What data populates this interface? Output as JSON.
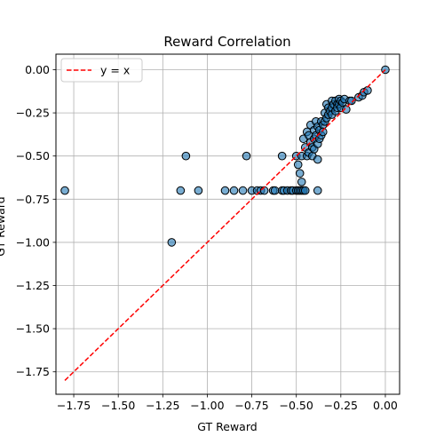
{
  "chart_data": {
    "type": "scatter",
    "title": "Reward Correlation",
    "xlabel": "GT Reward",
    "ylabel": "GT Reward",
    "xlim": [
      -1.85,
      0.08
    ],
    "ylim": [
      -1.88,
      0.09
    ],
    "xticks": [
      -1.75,
      -1.5,
      -1.25,
      -1.0,
      -0.75,
      -0.5,
      -0.25,
      0.0
    ],
    "xtick_labels": [
      "−1.75",
      "−1.50",
      "−1.25",
      "−1.00",
      "−0.75",
      "−0.50",
      "−0.25",
      "0.00"
    ],
    "yticks": [
      0.0,
      -0.25,
      -0.5,
      -0.75,
      -1.0,
      -1.25,
      -1.5,
      -1.75
    ],
    "ytick_labels": [
      "0.00",
      "−0.25",
      "−0.50",
      "−0.75",
      "−1.00",
      "−1.25",
      "−1.50",
      "−1.75"
    ],
    "grid": true,
    "legend_position": "top-left",
    "reference_line": {
      "label": "y = x",
      "x": [
        -1.8,
        0.0
      ],
      "y": [
        -1.8,
        0.0
      ],
      "color": "#ff0000",
      "style": "dashed"
    },
    "series": [
      {
        "marker_fill": "#1f77b4",
        "marker_edge": "#000000",
        "points": [
          [
            -1.8,
            -0.7
          ],
          [
            -1.2,
            -1.0
          ],
          [
            -1.15,
            -0.7
          ],
          [
            -1.12,
            -0.5
          ],
          [
            -1.05,
            -0.7
          ],
          [
            -0.9,
            -0.7
          ],
          [
            -0.85,
            -0.7
          ],
          [
            -0.8,
            -0.7
          ],
          [
            -0.78,
            -0.5
          ],
          [
            -0.75,
            -0.7
          ],
          [
            -0.72,
            -0.7
          ],
          [
            -0.7,
            -0.7
          ],
          [
            -0.68,
            -0.7
          ],
          [
            -0.63,
            -0.7
          ],
          [
            -0.62,
            -0.7
          ],
          [
            -0.58,
            -0.7
          ],
          [
            -0.57,
            -0.7
          ],
          [
            -0.58,
            -0.5
          ],
          [
            -0.55,
            -0.7
          ],
          [
            -0.53,
            -0.7
          ],
          [
            -0.52,
            -0.7
          ],
          [
            -0.5,
            -0.7
          ],
          [
            -0.49,
            -0.7
          ],
          [
            -0.48,
            -0.7
          ],
          [
            -0.47,
            -0.7
          ],
          [
            -0.46,
            -0.7
          ],
          [
            -0.45,
            -0.7
          ],
          [
            -0.38,
            -0.7
          ],
          [
            -0.5,
            -0.5
          ],
          [
            -0.49,
            -0.55
          ],
          [
            -0.48,
            -0.6
          ],
          [
            -0.47,
            -0.65
          ],
          [
            -0.47,
            -0.5
          ],
          [
            -0.46,
            -0.4
          ],
          [
            -0.45,
            -0.45
          ],
          [
            -0.44,
            -0.36
          ],
          [
            -0.44,
            -0.5
          ],
          [
            -0.43,
            -0.48
          ],
          [
            -0.43,
            -0.38
          ],
          [
            -0.42,
            -0.42
          ],
          [
            -0.42,
            -0.32
          ],
          [
            -0.41,
            -0.45
          ],
          [
            -0.41,
            -0.5
          ],
          [
            -0.4,
            -0.35
          ],
          [
            -0.4,
            -0.4
          ],
          [
            -0.4,
            -0.46
          ],
          [
            -0.39,
            -0.3
          ],
          [
            -0.39,
            -0.38
          ],
          [
            -0.38,
            -0.33
          ],
          [
            -0.38,
            -0.43
          ],
          [
            -0.38,
            -0.52
          ],
          [
            -0.37,
            -0.35
          ],
          [
            -0.37,
            -0.4
          ],
          [
            -0.36,
            -0.3
          ],
          [
            -0.36,
            -0.38
          ],
          [
            -0.35,
            -0.32
          ],
          [
            -0.35,
            -0.36
          ],
          [
            -0.34,
            -0.25
          ],
          [
            -0.34,
            -0.3
          ],
          [
            -0.33,
            -0.2
          ],
          [
            -0.33,
            -0.28
          ],
          [
            -0.32,
            -0.22
          ],
          [
            -0.32,
            -0.26
          ],
          [
            -0.31,
            -0.24
          ],
          [
            -0.3,
            -0.18
          ],
          [
            -0.3,
            -0.22
          ],
          [
            -0.3,
            -0.26
          ],
          [
            -0.29,
            -0.2
          ],
          [
            -0.28,
            -0.18
          ],
          [
            -0.28,
            -0.24
          ],
          [
            -0.27,
            -0.2
          ],
          [
            -0.27,
            -0.22
          ],
          [
            -0.26,
            -0.17
          ],
          [
            -0.26,
            -0.2
          ],
          [
            -0.25,
            -0.18
          ],
          [
            -0.25,
            -0.22
          ],
          [
            -0.24,
            -0.19
          ],
          [
            -0.23,
            -0.17
          ],
          [
            -0.22,
            -0.23
          ],
          [
            -0.2,
            -0.18
          ],
          [
            -0.19,
            -0.18
          ],
          [
            -0.15,
            -0.16
          ],
          [
            -0.13,
            -0.15
          ],
          [
            -0.12,
            -0.13
          ],
          [
            -0.1,
            -0.12
          ],
          [
            0.0,
            0.0
          ]
        ]
      }
    ]
  }
}
